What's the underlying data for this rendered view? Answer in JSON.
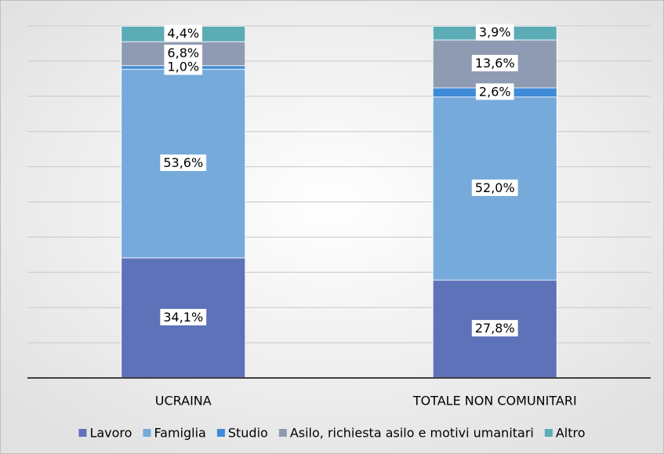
{
  "chart_data": {
    "type": "stacked_bar",
    "categories": [
      "UCRAINA",
      "TOTALE NON COMUNITARI"
    ],
    "series": [
      {
        "name": "Lavoro",
        "color": "#5d72b8",
        "values": [
          34.1,
          27.8
        ],
        "value_labels": [
          "34,1%",
          "27,8%"
        ]
      },
      {
        "name": "Famiglia",
        "color": "#76aadb",
        "values": [
          53.6,
          52.0
        ],
        "value_labels": [
          "53,6%",
          "52,0%"
        ]
      },
      {
        "name": "Studio",
        "color": "#3f8bd8",
        "values": [
          1.0,
          2.6
        ],
        "value_labels": [
          "1,0%",
          "2,6%"
        ]
      },
      {
        "name": "Asilo, richiesta asilo e motivi umanitari",
        "color": "#8f9bb2",
        "values": [
          6.8,
          13.6
        ],
        "value_labels": [
          "6,8%",
          "13,6%"
        ]
      },
      {
        "name": "Altro",
        "color": "#5cacb6",
        "values": [
          4.4,
          3.9
        ],
        "value_labels": [
          "4,4%",
          "3,9%"
        ]
      }
    ],
    "ylim": [
      0,
      100
    ],
    "yticks": [
      0,
      10,
      20,
      30,
      40,
      50,
      60,
      70,
      80,
      90,
      100
    ],
    "grid": true,
    "legend": "bottom"
  }
}
